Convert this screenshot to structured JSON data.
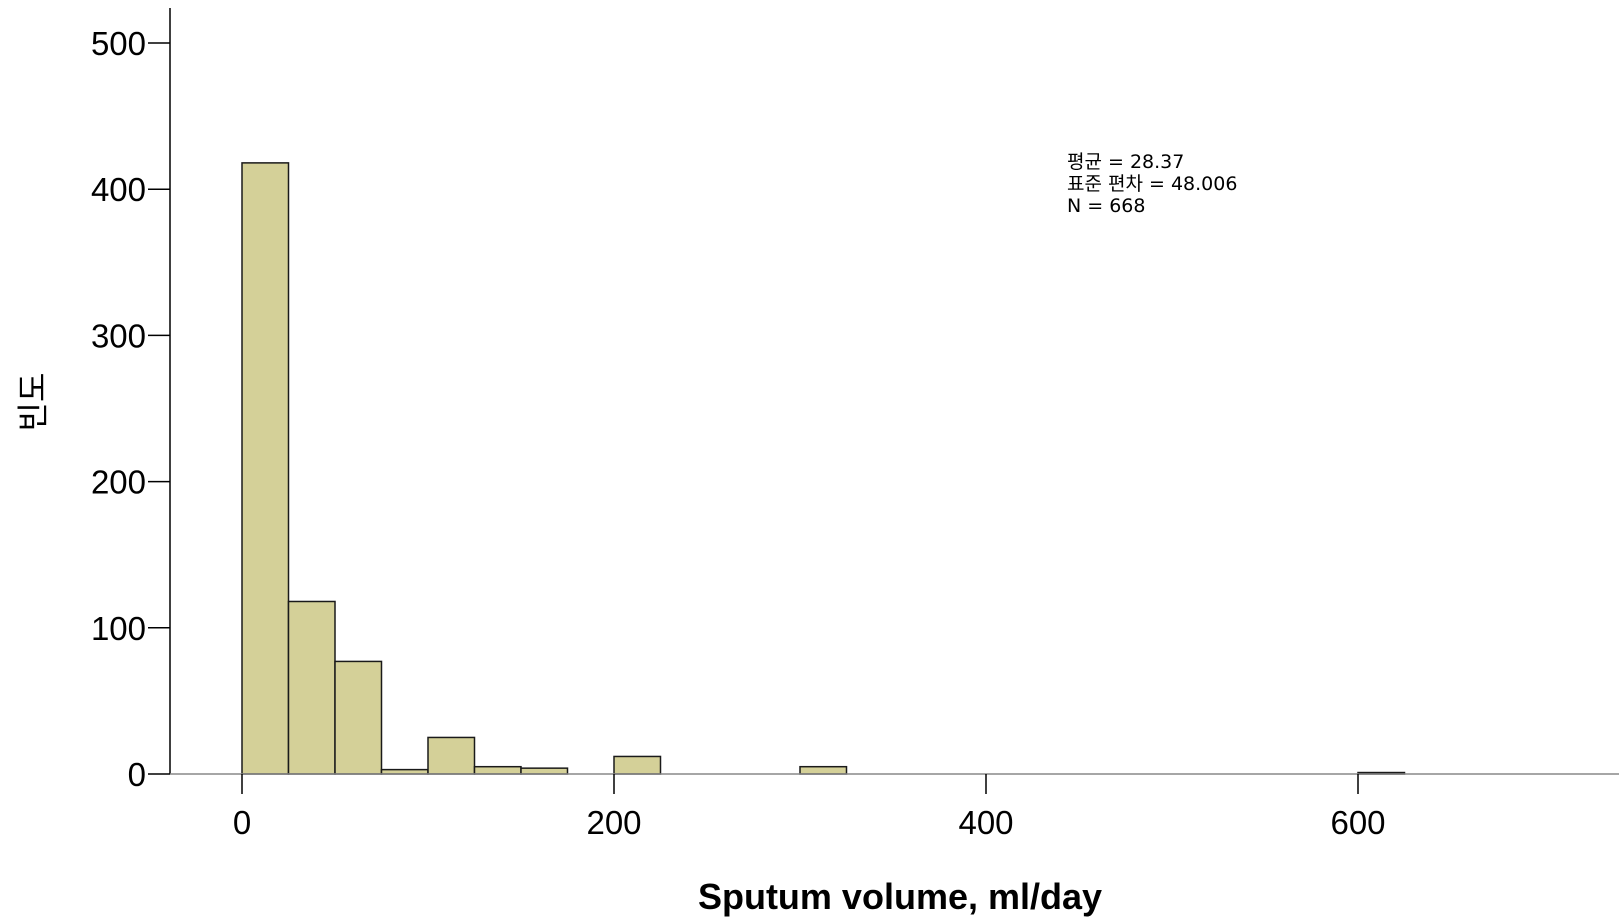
{
  "chart_data": {
    "type": "bar",
    "subtype": "histogram",
    "xlabel": "Sputum volume, ml/day",
    "ylabel": "빈도",
    "xlim": [
      -40,
      740
    ],
    "ylim": [
      0,
      500
    ],
    "bin_width": 25,
    "x_ticks": [
      0,
      200,
      400,
      600
    ],
    "y_ticks": [
      0,
      100,
      200,
      300,
      400,
      500
    ],
    "grid": false,
    "legend": "none",
    "bar_color": "#D4D098",
    "edge_color": "#1a1a1a",
    "bins": [
      {
        "start": 0,
        "end": 25,
        "count": 418
      },
      {
        "start": 25,
        "end": 50,
        "count": 118
      },
      {
        "start": 50,
        "end": 75,
        "count": 77
      },
      {
        "start": 75,
        "end": 100,
        "count": 3
      },
      {
        "start": 100,
        "end": 125,
        "count": 25
      },
      {
        "start": 125,
        "end": 150,
        "count": 5
      },
      {
        "start": 150,
        "end": 175,
        "count": 4
      },
      {
        "start": 200,
        "end": 225,
        "count": 12
      },
      {
        "start": 300,
        "end": 325,
        "count": 5
      },
      {
        "start": 600,
        "end": 625,
        "count": 1
      }
    ],
    "stats": {
      "mean_text": "평균 = 28.37",
      "sd_text": "표준 편차 = 48.006",
      "n_text": "N = 668"
    }
  }
}
